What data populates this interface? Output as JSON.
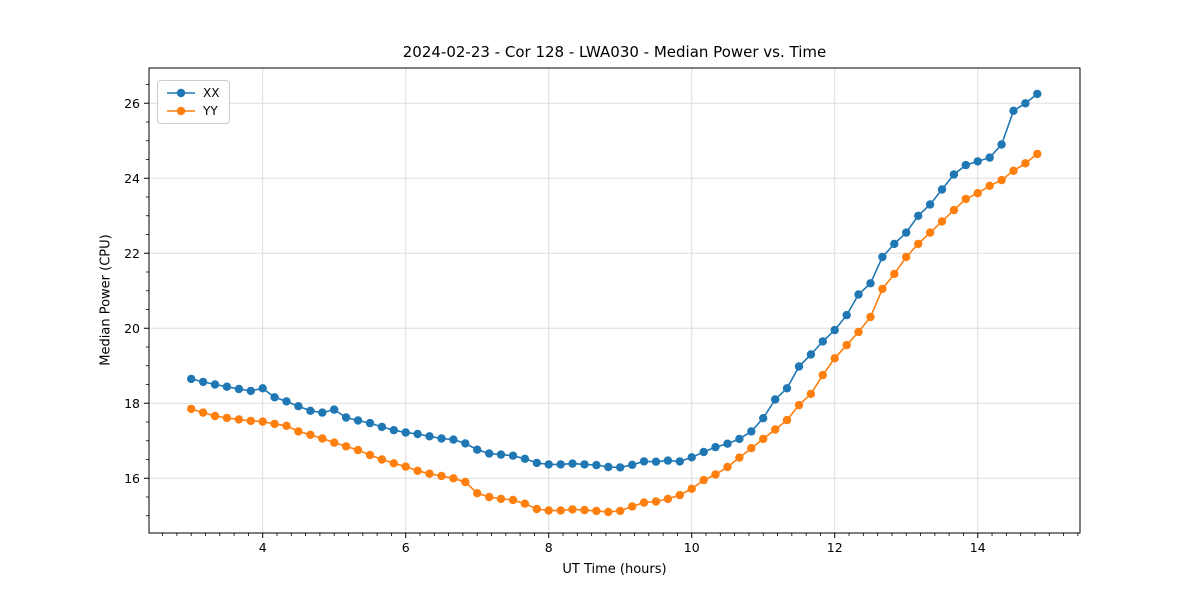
{
  "page": {
    "background": "#ffffff"
  },
  "chart_data": {
    "type": "line",
    "title": "2024-02-23 - Cor 128 - LWA030 - Median Power vs. Time",
    "xlabel": "UT Time (hours)",
    "ylabel": "Median Power (CPU)",
    "xlim": [
      2.41,
      15.43
    ],
    "ylim": [
      14.54,
      26.94
    ],
    "xticks": [
      4,
      6,
      8,
      10,
      12,
      14
    ],
    "yticks": [
      16,
      18,
      20,
      22,
      24,
      26
    ],
    "x_minor_step": 0.2,
    "y_minor_step": 0.5,
    "grid": true,
    "grid_color": "#dddddd",
    "legend_position": "upper-left",
    "x": [
      3,
      3.167,
      3.333,
      3.5,
      3.667,
      3.833,
      4,
      4.167,
      4.333,
      4.5,
      4.667,
      4.833,
      5,
      5.167,
      5.333,
      5.5,
      5.667,
      5.833,
      6,
      6.167,
      6.333,
      6.5,
      6.667,
      6.833,
      7,
      7.167,
      7.333,
      7.5,
      7.667,
      7.833,
      8,
      8.167,
      8.333,
      8.5,
      8.667,
      8.833,
      9,
      9.167,
      9.333,
      9.5,
      9.667,
      9.833,
      10,
      10.167,
      10.333,
      10.5,
      10.667,
      10.833,
      11,
      11.167,
      11.333,
      11.5,
      11.667,
      11.833,
      12,
      12.167,
      12.333,
      12.5,
      12.667,
      12.833,
      13,
      13.167,
      13.333,
      13.5,
      13.667,
      13.833,
      14,
      14.167,
      14.333,
      14.5,
      14.667,
      14.833
    ],
    "series": [
      {
        "name": "XX",
        "color": "#1f77b4",
        "marker": "circle",
        "values": [
          18.65,
          18.57,
          18.5,
          18.44,
          18.38,
          18.33,
          18.4,
          18.16,
          18.05,
          17.92,
          17.8,
          17.75,
          17.83,
          17.62,
          17.54,
          17.47,
          17.37,
          17.28,
          17.22,
          17.18,
          17.12,
          17.06,
          17.03,
          16.93,
          16.76,
          16.66,
          16.63,
          16.6,
          16.52,
          16.41,
          16.37,
          16.37,
          16.39,
          16.37,
          16.35,
          16.3,
          16.29,
          16.36,
          16.45,
          16.44,
          16.47,
          16.45,
          16.56,
          16.7,
          16.83,
          16.92,
          17.05,
          17.25,
          17.6,
          18.1,
          18.4,
          18.98,
          19.3,
          19.65,
          19.95,
          20.35,
          20.9,
          21.2,
          21.9,
          22.25,
          22.55,
          23.0,
          23.3,
          23.7,
          24.1,
          24.35,
          24.45,
          24.55,
          24.9,
          25.8,
          26.0,
          26.25
        ]
      },
      {
        "name": "YY",
        "color": "#ff7f0e",
        "marker": "circle",
        "values": [
          17.85,
          17.75,
          17.66,
          17.61,
          17.57,
          17.53,
          17.51,
          17.45,
          17.4,
          17.25,
          17.16,
          17.06,
          16.95,
          16.85,
          16.75,
          16.62,
          16.5,
          16.4,
          16.31,
          16.2,
          16.12,
          16.06,
          16.0,
          15.9,
          15.6,
          15.5,
          15.45,
          15.42,
          15.32,
          15.18,
          15.14,
          15.14,
          15.17,
          15.15,
          15.13,
          15.1,
          15.13,
          15.25,
          15.35,
          15.38,
          15.45,
          15.55,
          15.72,
          15.95,
          16.1,
          16.3,
          16.55,
          16.8,
          17.05,
          17.3,
          17.55,
          17.95,
          18.25,
          18.75,
          19.2,
          19.55,
          19.9,
          20.3,
          21.05,
          21.45,
          21.9,
          22.25,
          22.55,
          22.85,
          23.15,
          23.45,
          23.6,
          23.8,
          23.95,
          24.2,
          24.4,
          24.65
        ]
      }
    ]
  }
}
